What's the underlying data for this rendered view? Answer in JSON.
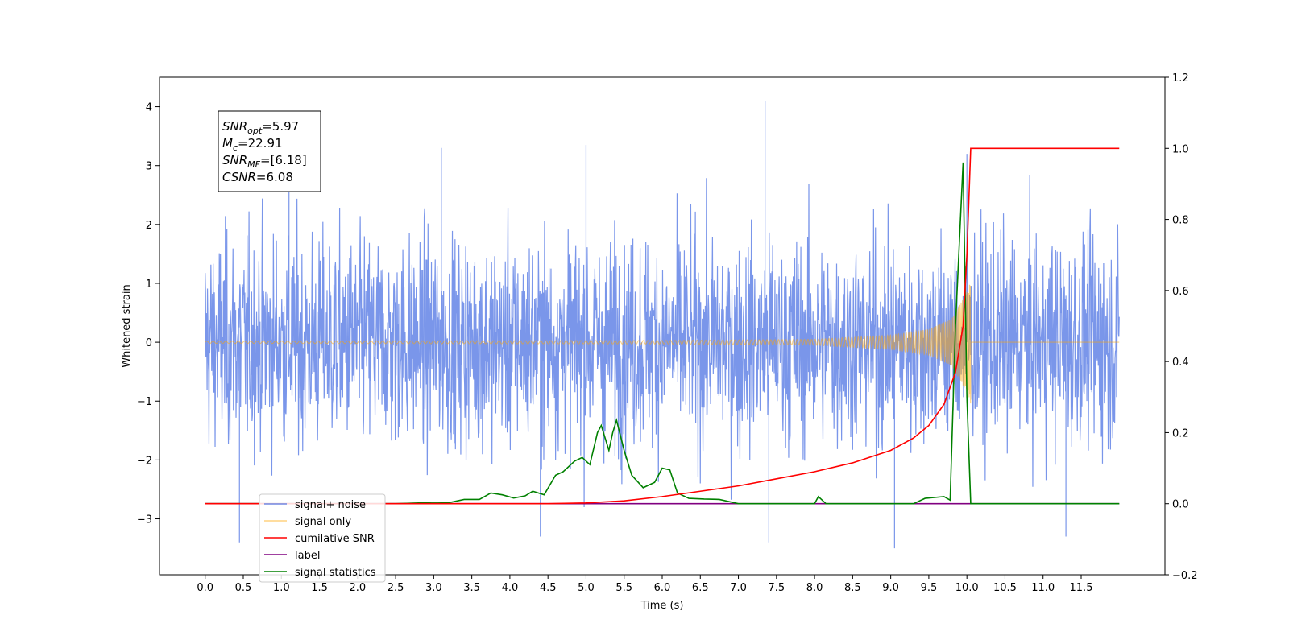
{
  "chart_data": {
    "type": "line",
    "xlabel": "Time (s)",
    "ylabel": "Whitened strain",
    "xlim": [
      -0.6,
      12.6
    ],
    "ylim": [
      -3.95,
      4.5
    ],
    "y2lim": [
      -0.2,
      1.2
    ],
    "x_ticks": [
      "0.0",
      "0.5",
      "1.0",
      "1.5",
      "2.0",
      "2.5",
      "3.0",
      "3.5",
      "4.0",
      "4.5",
      "5.0",
      "5.5",
      "6.0",
      "6.5",
      "7.0",
      "7.5",
      "8.0",
      "8.5",
      "9.0",
      "9.5",
      "10.0",
      "10.5",
      "11.0",
      "11.5"
    ],
    "y_ticks": [
      4,
      3,
      2,
      1,
      0,
      -1,
      -2,
      -3
    ],
    "y_tick_labels": [
      "4",
      "3",
      "2",
      "1",
      "0",
      "−1",
      "−2",
      "−3"
    ],
    "y2_ticks": [
      "1.2",
      "1.0",
      "0.8",
      "0.6",
      "0.4",
      "0.2",
      "0.0",
      "−0.2"
    ],
    "annotation": {
      "lines": [
        {
          "sym": "SNR",
          "sub": "opt",
          "val": "=5.97"
        },
        {
          "sym": "M",
          "sub": "c",
          "val": "=22.91"
        },
        {
          "sym": "SNR",
          "sub": "MF",
          "val": "=[6.18]"
        },
        {
          "sym": "CSNR",
          "sub": "",
          "val": "=6.08"
        }
      ]
    },
    "legend": {
      "position": "lower-left",
      "entries": [
        {
          "label": "signal+ noise",
          "color": "#4169e1"
        },
        {
          "label": "signal only",
          "color": "#ffa500"
        },
        {
          "label": "cumilative SNR",
          "color": "#ff0000"
        },
        {
          "label": "label",
          "color": "#800080"
        },
        {
          "label": "signal statistics",
          "color": "#008000"
        }
      ]
    },
    "series": [
      {
        "name": "signal+ noise",
        "axis": "left",
        "color": "#4169e1",
        "note": "whitened noise with std about 1, spanning t = 0 to 12",
        "noise_std": 1.0,
        "t_range": [
          0,
          12
        ],
        "peaks": [
          [
            0.45,
            -3.4
          ],
          [
            1.1,
            3.3
          ],
          [
            3.1,
            3.3
          ],
          [
            4.4,
            -3.3
          ],
          [
            5.0,
            3.35
          ],
          [
            7.35,
            4.1
          ],
          [
            7.4,
            -3.4
          ],
          [
            9.05,
            -3.5
          ],
          [
            10.0,
            3.2
          ],
          [
            11.3,
            -3.3
          ]
        ]
      },
      {
        "name": "signal only",
        "axis": "left",
        "color": "#ffa500",
        "note": "chirp ending at t = 10.05",
        "merger_time": 10.05,
        "envelope": [
          [
            0,
            0.02
          ],
          [
            6.0,
            0.03
          ],
          [
            8.0,
            0.05
          ],
          [
            9.0,
            0.12
          ],
          [
            9.5,
            0.22
          ],
          [
            9.8,
            0.4
          ],
          [
            10.0,
            0.85
          ],
          [
            10.05,
            1.05
          ]
        ]
      },
      {
        "name": "cumilative SNR",
        "axis": "right",
        "color": "#ff0000",
        "points": [
          [
            0,
            0.0
          ],
          [
            4.5,
            0.0
          ],
          [
            5.0,
            0.002
          ],
          [
            5.5,
            0.008
          ],
          [
            6.0,
            0.02
          ],
          [
            6.5,
            0.035
          ],
          [
            7.0,
            0.05
          ],
          [
            7.5,
            0.07
          ],
          [
            8.0,
            0.09
          ],
          [
            8.5,
            0.115
          ],
          [
            9.0,
            0.15
          ],
          [
            9.3,
            0.185
          ],
          [
            9.5,
            0.22
          ],
          [
            9.7,
            0.28
          ],
          [
            9.85,
            0.37
          ],
          [
            9.95,
            0.5
          ],
          [
            10.0,
            0.7
          ],
          [
            10.03,
            0.88
          ],
          [
            10.05,
            1.0
          ],
          [
            12.0,
            1.0
          ]
        ]
      },
      {
        "name": "label",
        "axis": "right",
        "color": "#800080",
        "points": [
          [
            0,
            0.0
          ],
          [
            12.0,
            0.0
          ]
        ]
      },
      {
        "name": "signal statistics",
        "axis": "right",
        "color": "#008000",
        "points": [
          [
            0,
            0
          ],
          [
            2.5,
            0
          ],
          [
            2.8,
            0.002
          ],
          [
            3.0,
            0.004
          ],
          [
            3.2,
            0.003
          ],
          [
            3.4,
            0.012
          ],
          [
            3.6,
            0.012
          ],
          [
            3.75,
            0.03
          ],
          [
            3.9,
            0.025
          ],
          [
            4.05,
            0.016
          ],
          [
            4.2,
            0.022
          ],
          [
            4.3,
            0.035
          ],
          [
            4.45,
            0.025
          ],
          [
            4.6,
            0.08
          ],
          [
            4.7,
            0.09
          ],
          [
            4.85,
            0.12
          ],
          [
            4.95,
            0.13
          ],
          [
            5.05,
            0.11
          ],
          [
            5.15,
            0.2
          ],
          [
            5.2,
            0.22
          ],
          [
            5.3,
            0.15
          ],
          [
            5.35,
            0.2
          ],
          [
            5.4,
            0.235
          ],
          [
            5.5,
            0.15
          ],
          [
            5.6,
            0.08
          ],
          [
            5.75,
            0.045
          ],
          [
            5.9,
            0.06
          ],
          [
            6.0,
            0.1
          ],
          [
            6.1,
            0.095
          ],
          [
            6.2,
            0.03
          ],
          [
            6.35,
            0.015
          ],
          [
            6.55,
            0.013
          ],
          [
            6.75,
            0.012
          ],
          [
            7.0,
            0.0
          ],
          [
            8.0,
            0.0
          ],
          [
            8.05,
            0.02
          ],
          [
            8.15,
            0.0
          ],
          [
            9.3,
            0.0
          ],
          [
            9.45,
            0.015
          ],
          [
            9.7,
            0.02
          ],
          [
            9.78,
            0.01
          ],
          [
            9.85,
            0.5
          ],
          [
            9.95,
            0.96
          ],
          [
            10.0,
            0.3
          ],
          [
            10.05,
            0.0
          ],
          [
            12.0,
            0.0
          ]
        ]
      }
    ]
  }
}
